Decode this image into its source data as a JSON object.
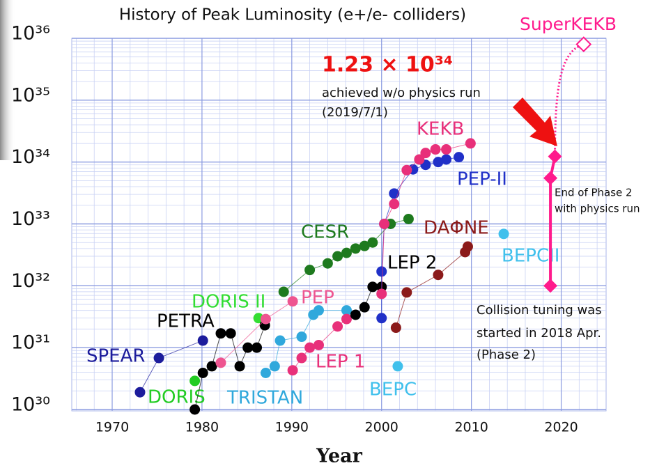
{
  "chart_data": {
    "type": "scatter",
    "title": "History of Peak Luminosity (e+/e- colliders)",
    "xlabel": "Year",
    "yscale": "log",
    "grid": true,
    "xlim": [
      1965.5,
      2025
    ],
    "xticks": [
      1970,
      1980,
      1990,
      2000,
      2010,
      2020
    ],
    "ylim": [
      1e+30,
      1e+36
    ],
    "yticks": [
      {
        "value": 1e+30,
        "label": "10³⁰"
      },
      {
        "value": 1e+31,
        "label": "10³¹"
      },
      {
        "value": 1e+32,
        "label": "10³²"
      },
      {
        "value": 1e+33,
        "label": "10³³"
      },
      {
        "value": 1e+34,
        "label": "10³⁴"
      },
      {
        "value": 1e+35,
        "label": "10³⁵"
      },
      {
        "value": 1e+36,
        "label": "10³⁶"
      }
    ],
    "series": [
      {
        "name": "SPEAR",
        "color": "#1c1c9c",
        "x": [
          1973.1,
          1975.2,
          1980.1
        ],
        "values": [
          1.9e+30,
          6.8e+30,
          1.3e+31
        ]
      },
      {
        "name": "DORIS",
        "color": "#22cc22",
        "x": [
          1979.2
        ],
        "values": [
          2.9e+30
        ]
      },
      {
        "name": "DORIS II",
        "color": "#33dd33",
        "x": [
          1986.3
        ],
        "values": [
          3e+31
        ]
      },
      {
        "name": "PETRA",
        "color": "#000000",
        "x": [
          1979.2,
          1980.1,
          1981.1,
          1982.1,
          1983.2,
          1984.2,
          1985.1,
          1986.1,
          1987.0
        ],
        "values": [
          1e+30,
          3.9e+30,
          5e+30,
          1.7e+31,
          1.7e+31,
          5e+30,
          1e+31,
          1e+31,
          2.3e+31
        ]
      },
      {
        "name": "CESR",
        "color": "#1e7a1e",
        "x": [
          1989.1,
          1992.0,
          1994.0,
          1995.1,
          1996.1,
          1997.1,
          1998.1,
          1999.0,
          2001.0,
          2003.0
        ],
        "values": [
          8e+31,
          1.8e+32,
          2.3e+32,
          3e+32,
          3.4e+32,
          4e+32,
          4.4e+32,
          5e+32,
          1e+33,
          1.2e+33
        ]
      },
      {
        "name": "PEP",
        "color": "#ee5590",
        "x": [
          1982.1,
          1987.1,
          1990.1
        ],
        "values": [
          5.7e+30,
          2.9e+31,
          5.6e+31
        ]
      },
      {
        "name": "TRISTAN",
        "color": "#30a8dc",
        "x": [
          1987.1,
          1988.1,
          1988.7,
          1991.1,
          1992.4,
          1993.0,
          1996.1
        ],
        "values": [
          3.9e+30,
          5e+30,
          1.3e+31,
          1.5e+31,
          3.4e+31,
          4e+31,
          4e+31
        ]
      },
      {
        "name": "LEP 1",
        "color": "#e8307a",
        "x": [
          1990.1,
          1991.1,
          1992.0,
          1993.0,
          1995.1,
          1996.1
        ],
        "values": [
          4.3e+30,
          6.8e+30,
          1e+31,
          1.1e+31,
          2.2e+31,
          2.9e+31
        ]
      },
      {
        "name": "LEP 2",
        "color": "#000000",
        "x": [
          1997.1,
          1998.1,
          1999.0,
          2000.0
        ],
        "values": [
          3.4e+31,
          4.5e+31,
          9.6e+31,
          9.6e+31
        ]
      },
      {
        "name": "PEP-II",
        "color": "#2030c8",
        "x": [
          2000.0,
          2000.0,
          2000.3,
          2001.4,
          2003.5,
          2004.9,
          2006.3,
          2007.2,
          2008.6
        ],
        "values": [
          3e+31,
          1.7e+32,
          1e+33,
          3.1e+33,
          7.6e+33,
          9e+33,
          1e+34,
          1.1e+34,
          1.2e+34
        ]
      },
      {
        "name": "KEKB",
        "color": "#e8307a",
        "x": [
          2000.0,
          2000.3,
          2001.4,
          2002.8,
          2004.2,
          2004.9,
          2006.0,
          2007.2,
          2009.9
        ],
        "values": [
          7.4e+31,
          1e+33,
          2.1e+33,
          7.4e+33,
          1.1e+34,
          1.4e+34,
          1.6e+34,
          1.6e+34,
          2e+34
        ]
      },
      {
        "name": "DAΦNE",
        "color": "#8b1a1a",
        "x": [
          2001.6,
          2002.8,
          2006.3,
          2009.3,
          2009.6
        ],
        "values": [
          2.1e+31,
          7.8e+31,
          1.5e+32,
          3.5e+32,
          4.3e+32
        ]
      },
      {
        "name": "BEPC",
        "color": "#40c0ec",
        "x": [
          2001.8
        ],
        "values": [
          5e+30
        ]
      },
      {
        "name": "BEPCII",
        "color": "#40c0ec",
        "x": [
          2013.6
        ],
        "values": [
          6.9e+32
        ]
      },
      {
        "name": "SuperKEKB",
        "color": "#ff1a8c",
        "x": [
          2018.8,
          2018.8,
          2019.3
        ],
        "values": [
          1e+32,
          5.5e+33,
          1.23e+34
        ],
        "target": {
          "x": 2022.5,
          "value": 8e+35
        }
      }
    ],
    "annotations": [
      "1.23 × 10³⁴",
      "achieved w/o physics run",
      "(2019/7/1)",
      "End of Phase 2",
      "with physics run",
      "Collision tuning was",
      "started in 2018 Apr.",
      "(Phase 2)"
    ]
  }
}
